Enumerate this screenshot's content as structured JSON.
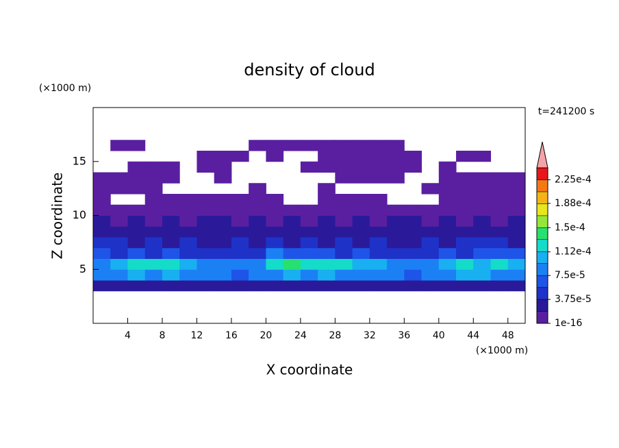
{
  "chart_data": {
    "type": "contour",
    "title": "density of cloud",
    "xlabel": "X coordinate",
    "ylabel": "Z coordinate",
    "x_unit_label": "(×1000 m)",
    "y_unit_label": "(×1000 m)",
    "annotation": "t=241200 s",
    "xlim": [
      0,
      50
    ],
    "ylim": [
      0,
      20
    ],
    "xticks": [
      4,
      8,
      12,
      16,
      20,
      24,
      28,
      32,
      36,
      40,
      44,
      48
    ],
    "yticks": [
      5,
      10,
      15
    ],
    "x": [
      1,
      3,
      5,
      7,
      9,
      11,
      13,
      15,
      17,
      19,
      21,
      23,
      25,
      27,
      29,
      31,
      33,
      35,
      37,
      39,
      41,
      43,
      45,
      47,
      49
    ],
    "z": [
      3.5,
      4.5,
      5.5,
      6.5,
      7.5,
      8.5,
      9.5,
      10.5,
      11.5,
      12.5,
      13.5,
      14.5,
      15.5,
      16.5
    ],
    "values": [
      [
        2e-05,
        2.5e-05,
        2e-05,
        2.5e-05,
        2e-05,
        2.5e-05,
        2e-05,
        2e-05,
        2.5e-05,
        2e-05,
        2.5e-05,
        2e-05,
        2.5e-05,
        2e-05,
        2e-05,
        2.5e-05,
        2e-05,
        2.5e-05,
        2e-05,
        2e-05,
        2.5e-05,
        2e-05,
        2e-05,
        2.5e-05,
        2e-05
      ],
      [
        8e-05,
        9e-05,
        0.0001,
        9e-05,
        0.0001,
        8e-05,
        9e-05,
        8e-05,
        7e-05,
        8e-05,
        9e-05,
        0.0001,
        9e-05,
        0.0001,
        9e-05,
        8e-05,
        9e-05,
        8e-05,
        7e-05,
        8e-05,
        9e-05,
        0.0001,
        0.0001,
        9e-05,
        8e-05
      ],
      [
        9e-05,
        0.00011,
        0.00012,
        0.00013,
        0.00012,
        0.00011,
        9e-05,
        8e-05,
        8e-05,
        9e-05,
        0.00012,
        0.00014,
        0.00012,
        0.00013,
        0.00012,
        0.00011,
        0.0001,
        9e-05,
        8e-05,
        9e-05,
        0.00011,
        0.00012,
        0.00011,
        0.00012,
        0.0001
      ],
      [
        6e-05,
        5e-05,
        6e-05,
        5e-05,
        6e-05,
        5e-05,
        4e-05,
        5e-05,
        4e-05,
        5e-05,
        8e-05,
        7e-05,
        6e-05,
        6e-05,
        5e-05,
        6e-05,
        5e-05,
        4e-05,
        5e-05,
        4e-05,
        6e-05,
        5e-05,
        6e-05,
        7e-05,
        6e-05
      ],
      [
        4e-05,
        5e-05,
        3e-05,
        4e-05,
        3e-05,
        4e-05,
        3e-05,
        3e-05,
        4e-05,
        3e-05,
        4e-05,
        3e-05,
        4e-05,
        3e-05,
        4e-05,
        3e-05,
        4e-05,
        3e-05,
        3e-05,
        4e-05,
        3e-05,
        4e-05,
        5e-05,
        4e-05,
        3e-05
      ],
      [
        3e-05,
        2e-05,
        3e-05,
        2e-05,
        2e-05,
        3e-05,
        2e-05,
        2e-05,
        3e-05,
        2e-05,
        2e-05,
        3e-05,
        2e-05,
        3e-05,
        2e-05,
        2e-05,
        3e-05,
        2e-05,
        2e-05,
        3e-05,
        2e-05,
        3e-05,
        2e-05,
        3e-05,
        2e-05
      ],
      [
        2e-05,
        1.5e-05,
        2e-05,
        1.5e-05,
        2e-05,
        1.5e-05,
        2e-05,
        2e-05,
        1.5e-05,
        2e-05,
        1.5e-05,
        2e-05,
        1.5e-05,
        2e-05,
        1.5e-05,
        2e-05,
        1.5e-05,
        2e-05,
        2e-05,
        1.5e-05,
        2e-05,
        1.5e-05,
        2e-05,
        1.5e-05,
        2e-05
      ],
      [
        1e-05,
        1e-05,
        5e-06,
        1e-05,
        5e-06,
        1e-05,
        5e-06,
        1e-05,
        5e-06,
        5e-06,
        1e-05,
        5e-06,
        1e-05,
        5e-06,
        5e-06,
        5e-06,
        1e-05,
        5e-06,
        1e-05,
        5e-06,
        1e-05,
        5e-06,
        1e-05,
        1e-05,
        5e-06
      ],
      [
        5e-06,
        null,
        null,
        5e-06,
        5e-06,
        5e-06,
        5e-06,
        5e-06,
        5e-06,
        5e-06,
        5e-06,
        null,
        null,
        5e-06,
        5e-06,
        5e-06,
        5e-06,
        null,
        null,
        null,
        5e-06,
        1e-05,
        5e-06,
        1e-05,
        5e-06
      ],
      [
        5e-06,
        5e-06,
        5e-06,
        5e-06,
        null,
        null,
        null,
        null,
        null,
        5e-06,
        null,
        null,
        null,
        5e-06,
        null,
        null,
        null,
        null,
        null,
        5e-06,
        5e-06,
        5e-06,
        5e-06,
        5e-06,
        5e-06
      ],
      [
        5e-06,
        5e-06,
        5e-06,
        5e-06,
        5e-06,
        null,
        null,
        5e-06,
        null,
        null,
        null,
        null,
        null,
        null,
        5e-06,
        5e-06,
        5e-06,
        5e-06,
        null,
        null,
        5e-06,
        5e-06,
        5e-06,
        5e-06,
        5e-06
      ],
      [
        null,
        null,
        5e-06,
        5e-06,
        5e-06,
        null,
        5e-06,
        5e-06,
        null,
        null,
        null,
        null,
        5e-06,
        5e-06,
        5e-06,
        5e-06,
        5e-06,
        5e-06,
        5e-06,
        null,
        5e-06,
        null,
        null,
        null,
        null
      ],
      [
        null,
        null,
        null,
        null,
        null,
        null,
        5e-06,
        5e-06,
        5e-06,
        null,
        5e-06,
        null,
        null,
        5e-06,
        5e-06,
        5e-06,
        5e-06,
        5e-06,
        5e-06,
        null,
        null,
        5e-06,
        5e-06,
        null,
        null
      ],
      [
        null,
        5e-06,
        5e-06,
        null,
        null,
        null,
        null,
        null,
        null,
        5e-06,
        5e-06,
        5e-06,
        5e-06,
        5e-06,
        5e-06,
        5e-06,
        5e-06,
        5e-06,
        null,
        null,
        null,
        null,
        null,
        null,
        null
      ]
    ],
    "colorbar": {
      "clim": [
        1e-16,
        0.00024375
      ],
      "colors": [
        "#5a1fa0",
        "#2a1a9a",
        "#1e32c8",
        "#1e55e8",
        "#1c80f5",
        "#18b0f0",
        "#14dcc8",
        "#28e070",
        "#96e63a",
        "#e8e61e",
        "#f5b414",
        "#f57814",
        "#e8161a"
      ],
      "extend_color": "#f4a4a8",
      "ticks": [
        {
          "value": 1e-16,
          "label": "1e-16"
        },
        {
          "value": 3.75e-05,
          "label": "3.75e-5"
        },
        {
          "value": 7.5e-05,
          "label": "7.5e-5"
        },
        {
          "value": 0.000112,
          "label": "1.12e-4"
        },
        {
          "value": 0.00015,
          "label": "1.5e-4"
        },
        {
          "value": 0.000188,
          "label": "1.88e-4"
        },
        {
          "value": 0.000225,
          "label": "2.25e-4"
        }
      ]
    }
  }
}
